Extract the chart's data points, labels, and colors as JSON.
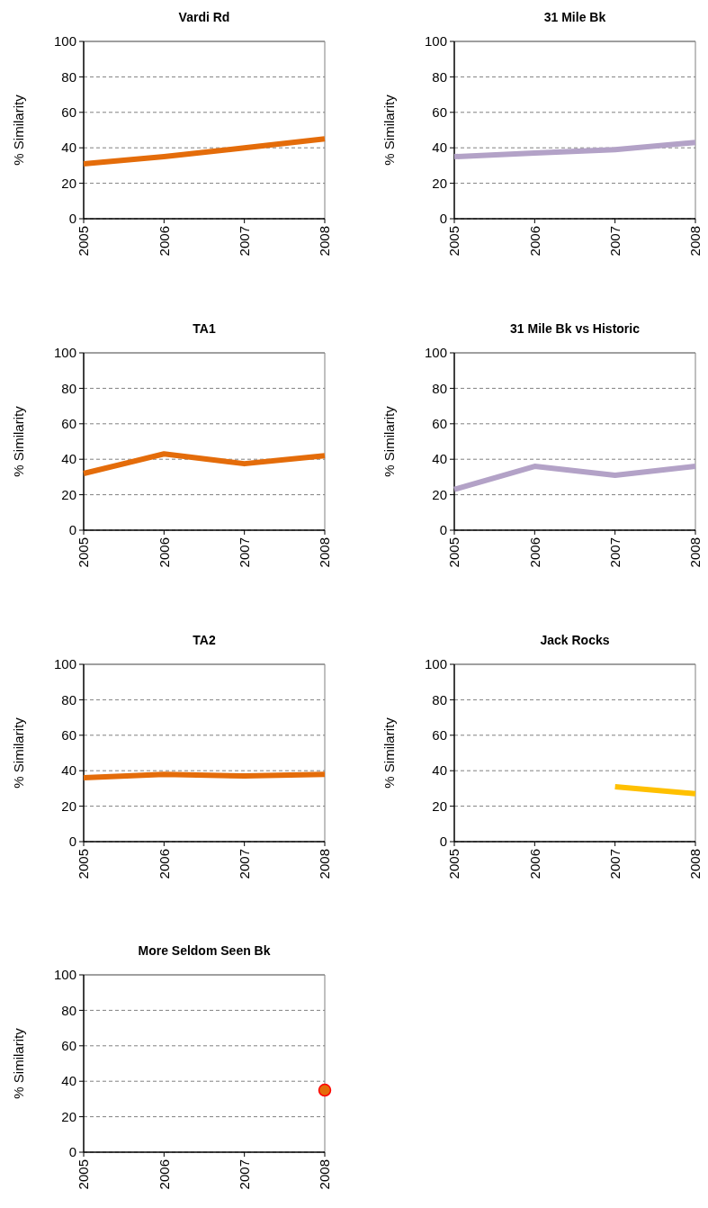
{
  "chart_data": [
    {
      "type": "line",
      "title": "Vardi Rd",
      "ylabel": "% Similarity",
      "categories": [
        "2005",
        "2006",
        "2007",
        "2008"
      ],
      "series": [
        {
          "color": "#e46c0a",
          "values": [
            31,
            35,
            40,
            45
          ]
        }
      ],
      "ylim": [
        0,
        100
      ],
      "yticks": [
        0,
        20,
        40,
        60,
        80,
        100
      ],
      "grid": "y",
      "marker": "none",
      "line_style": "solid"
    },
    {
      "type": "line",
      "title": "31 Mile Bk",
      "ylabel": "% Similarity",
      "categories": [
        "2005",
        "2006",
        "2007",
        "2008"
      ],
      "series": [
        {
          "color": "#b3a2c7",
          "values": [
            35,
            37,
            39,
            43
          ]
        }
      ],
      "ylim": [
        0,
        100
      ],
      "yticks": [
        0,
        20,
        40,
        60,
        80,
        100
      ],
      "grid": "y",
      "marker": "none",
      "line_style": "solid"
    },
    {
      "type": "line",
      "title": "TA1",
      "ylabel": "% Similarity",
      "categories": [
        "2005",
        "2006",
        "2007",
        "2008"
      ],
      "series": [
        {
          "color": "#e46c0a",
          "values": [
            32,
            43,
            37.5,
            42
          ]
        }
      ],
      "ylim": [
        0,
        100
      ],
      "yticks": [
        0,
        20,
        40,
        60,
        80,
        100
      ],
      "grid": "y",
      "marker": "none",
      "line_style": "solid"
    },
    {
      "type": "line",
      "title": "31 Mile Bk vs Historic",
      "ylabel": "% Similarity",
      "categories": [
        "2005",
        "2006",
        "2007",
        "2008"
      ],
      "series": [
        {
          "color": "#b3a2c7",
          "values": [
            23,
            36,
            31,
            36
          ]
        }
      ],
      "ylim": [
        0,
        100
      ],
      "yticks": [
        0,
        20,
        40,
        60,
        80,
        100
      ],
      "grid": "y",
      "marker": "none",
      "line_style": "solid"
    },
    {
      "type": "line",
      "title": "TA2",
      "ylabel": "% Similarity",
      "categories": [
        "2005",
        "2006",
        "2007",
        "2008"
      ],
      "series": [
        {
          "color": "#e46c0a",
          "values": [
            36,
            38,
            37,
            38
          ]
        }
      ],
      "ylim": [
        0,
        100
      ],
      "yticks": [
        0,
        20,
        40,
        60,
        80,
        100
      ],
      "grid": "y",
      "marker": "none",
      "line_style": "solid"
    },
    {
      "type": "line",
      "title": "Jack Rocks",
      "ylabel": "% Similarity",
      "categories": [
        "2005",
        "2006",
        "2007",
        "2008"
      ],
      "series": [
        {
          "color": "#ffc000",
          "values": [
            null,
            null,
            31,
            27
          ]
        }
      ],
      "ylim": [
        0,
        100
      ],
      "yticks": [
        0,
        20,
        40,
        60,
        80,
        100
      ],
      "grid": "y",
      "marker": "none",
      "line_style": "solid"
    },
    {
      "type": "scatter",
      "title": "More Seldom Seen Bk",
      "ylabel": "% Similarity",
      "categories": [
        "2005",
        "2006",
        "2007",
        "2008"
      ],
      "series": [
        {
          "color": "#e46c0a",
          "values": [
            null,
            null,
            null,
            35
          ]
        }
      ],
      "ylim": [
        0,
        100
      ],
      "yticks": [
        0,
        20,
        40,
        60,
        80,
        100
      ],
      "grid": "y",
      "marker": "circle"
    }
  ]
}
